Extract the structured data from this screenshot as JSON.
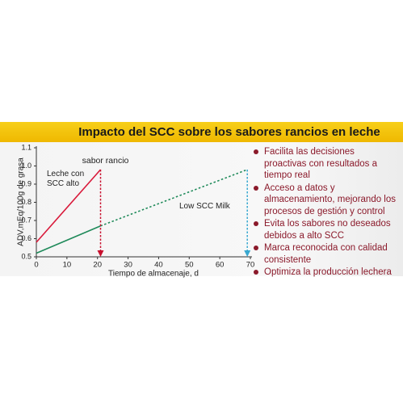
{
  "chart_data": {
    "type": "line",
    "title": "Impacto del SCC sobre los sabores rancios en leche",
    "xlabel": "Tiempo de almacenaje, d",
    "ylabel": "ADV,mEq/100g de grasa",
    "xlim": [
      0,
      70
    ],
    "ylim": [
      0.5,
      1.1
    ],
    "xticks": [
      0,
      10,
      20,
      30,
      40,
      50,
      60,
      70
    ],
    "yticks": [
      0.5,
      0.6,
      0.7,
      0.8,
      0.9,
      {
        "value": 1,
        "label": "1.0"
      },
      1.1
    ],
    "series": [
      {
        "name": "Leche con SCC alto",
        "color": "#d9193a",
        "x": [
          0,
          21
        ],
        "values": [
          0.58,
          0.98
        ],
        "line_styles": [
          "solid"
        ]
      },
      {
        "name": "Low SCC Milk",
        "color": "#1f8a5a",
        "x": [
          0,
          21,
          69
        ],
        "values": [
          0.52,
          0.67,
          0.98
        ],
        "line_styles": [
          "solid",
          "dotted"
        ]
      }
    ],
    "markers": [
      {
        "x": 21,
        "color": "#c8102e",
        "label": "sabor rancio"
      },
      {
        "x": 69,
        "color": "#3aa8d0"
      }
    ]
  },
  "bullets": [
    "Facilita las decisiones proactivas con resultados a tiempo real",
    "Acceso a datos y almacenamiento, mejorando los procesos de gestión y control",
    "Evita los sabores no deseados debidos a alto SCC",
    "Marca reconocida con calidad consistente",
    "Optimiza la producción lechera"
  ]
}
